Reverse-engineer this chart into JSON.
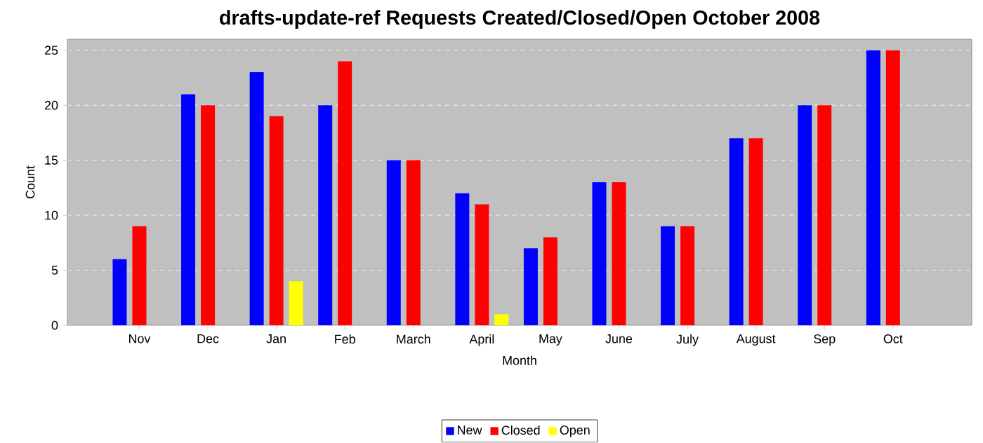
{
  "chart_data": {
    "type": "bar",
    "title": "drafts-update-ref Requests Created/Closed/Open October 2008",
    "xlabel": "Month",
    "ylabel": "Count",
    "categories": [
      "Nov",
      "Dec",
      "Jan",
      "Feb",
      "March",
      "April",
      "May",
      "June",
      "July",
      "August",
      "Sep",
      "Oct"
    ],
    "series": [
      {
        "name": "New",
        "color": "#0000ff",
        "values": [
          6,
          21,
          23,
          20,
          15,
          12,
          7,
          13,
          9,
          17,
          20,
          25
        ]
      },
      {
        "name": "Closed",
        "color": "#ff0000",
        "values": [
          9,
          20,
          19,
          24,
          15,
          11,
          8,
          13,
          9,
          17,
          20,
          25
        ]
      },
      {
        "name": "Open",
        "color": "#ffff00",
        "values": [
          0,
          0,
          4,
          0,
          0,
          1,
          0,
          0,
          0,
          0,
          0,
          0
        ]
      }
    ],
    "ylim": [
      0,
      26
    ],
    "yticks": [
      0,
      5,
      10,
      15,
      20,
      25
    ],
    "grid": "y",
    "legend": "bottom"
  }
}
